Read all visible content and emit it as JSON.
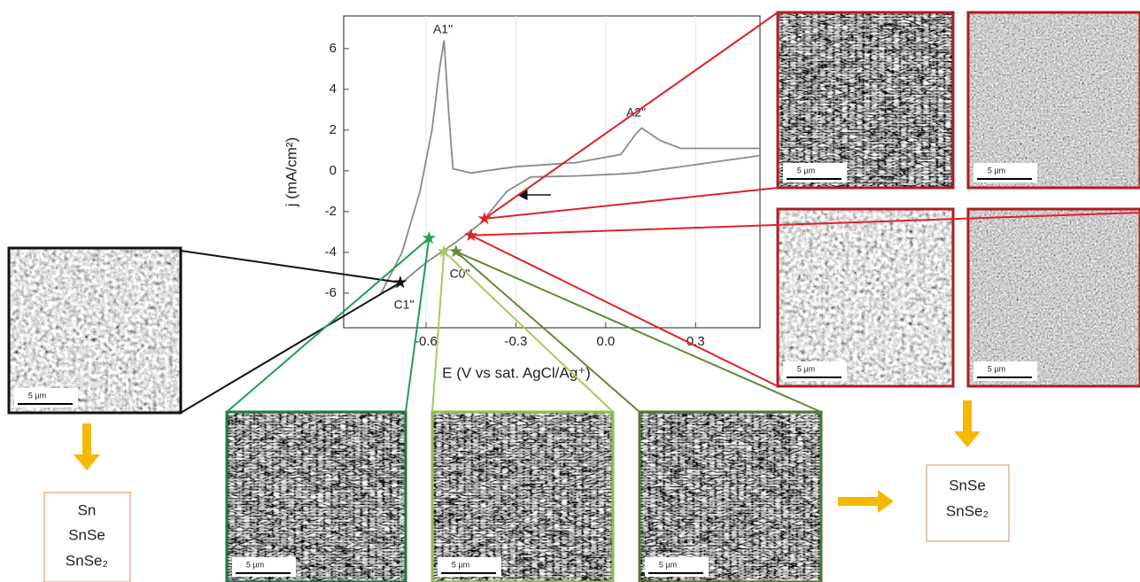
{
  "chart_data": {
    "type": "line",
    "x_label": "E (V vs sat. AgCl/Ag⁺)",
    "y_label": "j (mA/cm²)",
    "xlim": [
      -0.875,
      0.515
    ],
    "ylim": [
      -7.7,
      7.6
    ],
    "xticks": [
      -0.6,
      -0.3,
      {
        "value": 0,
        "label": "0.0"
      },
      0.3
    ],
    "yticks": [
      -6,
      -4,
      -2,
      0,
      2,
      4,
      6
    ],
    "grid": true,
    "series": [
      {
        "color": "#8a8a8a",
        "x": [
          0.515,
          0.3,
          0.1,
          0.05,
          -0.1,
          -0.25,
          -0.33,
          -0.38,
          -0.42,
          -0.5,
          -0.6,
          -0.69,
          -0.72,
          -0.75,
          -0.68,
          -0.62,
          -0.58,
          -0.555,
          -0.54,
          -0.525,
          -0.51,
          -0.45,
          -0.3,
          -0.1,
          0.05,
          0.1,
          0.12,
          0.18,
          0.25,
          0.515
        ],
        "values": [
          0.75,
          0.3,
          -0.1,
          -0.15,
          -0.25,
          -0.3,
          -1.0,
          -1.9,
          -2.6,
          -3.5,
          -4.5,
          -5.6,
          -5.8,
          -6.0,
          -4.0,
          -1.0,
          2.0,
          5.0,
          6.4,
          3.0,
          0.1,
          -0.1,
          0.2,
          0.4,
          0.8,
          1.8,
          2.1,
          1.5,
          1.1,
          1.1
        ]
      }
    ],
    "annotations": [
      "A1\"",
      "A2\"",
      "C1\"",
      "C0\""
    ],
    "markers": {
      "x": [
        -0.686,
        -0.59,
        -0.54,
        -0.5,
        -0.405,
        -0.45
      ],
      "values": [
        -5.48,
        -3.3,
        -3.96,
        -3.96,
        -2.35,
        -3.17
      ],
      "colors": [
        "#111111",
        "#1e9e55",
        "#a4cc5a",
        "#5e8a3a",
        "#e0202a",
        "#e0202a"
      ]
    }
  },
  "sem_images": [
    {
      "scale_bar": "5 µm"
    },
    {
      "scale_bar": "5 µm"
    },
    {
      "scale_bar": "5 µm"
    },
    {
      "scale_bar": "5 µm"
    },
    {
      "scale_bar": "5 µm"
    },
    {
      "scale_bar": "5 µm"
    },
    {
      "scale_bar": "5 µm"
    },
    {
      "scale_bar": "5 µm"
    }
  ],
  "left_products": [
    "Sn",
    "SnSe",
    "SnSe₂"
  ],
  "right_products": [
    "SnSe",
    "SnSe₂"
  ]
}
